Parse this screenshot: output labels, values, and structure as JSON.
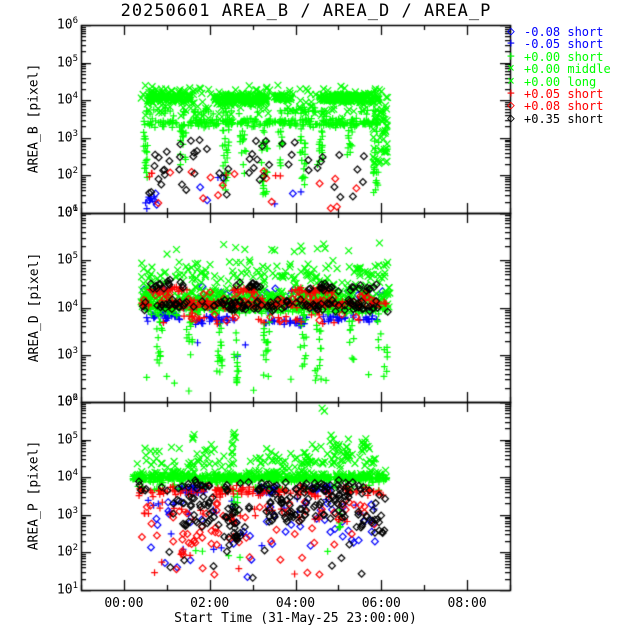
{
  "title": "20250601 AREA_B / AREA_D / AREA_P",
  "colors": {
    "background": "#ffffff",
    "axis": "#000000",
    "blue": "#0000ff",
    "green": "#00ff00",
    "red": "#ff0000",
    "black": "#000000"
  },
  "legend": {
    "position": "top-right-outside",
    "items": [
      {
        "label": "-0.08 short",
        "symbol": "diamond",
        "symbol_char": "◇",
        "color": "#0000ff"
      },
      {
        "label": "-0.05 short",
        "symbol": "plus",
        "symbol_char": "+",
        "color": "#0000ff"
      },
      {
        "label": "+0.00 short",
        "symbol": "plus",
        "symbol_char": "+",
        "color": "#00ff00"
      },
      {
        "label": "+0.00 middle",
        "symbol": "cross",
        "symbol_char": "×",
        "color": "#00ff00"
      },
      {
        "label": "+0.00 long",
        "symbol": "cross",
        "symbol_char": "×",
        "color": "#00ff00"
      },
      {
        "label": "+0.05 short",
        "symbol": "plus",
        "symbol_char": "+",
        "color": "#ff0000"
      },
      {
        "label": "+0.08 short",
        "symbol": "diamond",
        "symbol_char": "◇",
        "color": "#ff0000"
      },
      {
        "label": "+0.35 short",
        "symbol": "diamond",
        "symbol_char": "◇",
        "color": "#000000"
      }
    ]
  },
  "x_axis": {
    "label": "Start Time (31-May-25 23:00:00)",
    "tick_labels": [
      "00:00",
      "02:00",
      "04:00",
      "06:00",
      "08:00"
    ],
    "tick_hours": [
      0,
      2,
      4,
      6,
      8
    ],
    "range_hours": [
      -1,
      9
    ],
    "minor_tick_every_hours": 1
  },
  "panels": [
    {
      "name": "AREA_B",
      "ylabel": "AREA_B [pixel]",
      "y_exp_range": [
        1,
        6
      ],
      "ytick_exponents": [
        6,
        5,
        4,
        3,
        2,
        1
      ]
    },
    {
      "name": "AREA_D",
      "ylabel": "AREA_D [pixel]",
      "y_exp_range": [
        2,
        6
      ],
      "ytick_exponents": [
        6,
        5,
        4,
        3,
        2
      ]
    },
    {
      "name": "AREA_P",
      "ylabel": "AREA_P [pixel]",
      "y_exp_range": [
        1,
        6
      ],
      "ytick_exponents": [
        6,
        5,
        4,
        3,
        2,
        1
      ]
    }
  ],
  "chart_data": {
    "type": "scatter",
    "title": "20250601 AREA_B / AREA_D / AREA_P",
    "xlabel": "Start Time (31-May-25 23:00:00)",
    "x_unit": "hours after 00:00 on 1-Jun-25",
    "x_range_hours": [
      -1,
      9
    ],
    "y_scale": "log10",
    "grid": false,
    "legend_position": "top-right-outside",
    "cluster_format": "[x_start_hours, x_end_hours, log10y_min, log10y_max, n_points]",
    "series": [
      {
        "name": "-0.08 short",
        "color": "#0000ff",
        "symbol": "diamond",
        "clusters": {
          "AREA_B": [
            [
              0.5,
              0.8,
              1.1,
              1.65,
              4
            ],
            [
              1.5,
              4.3,
              1.3,
              2.2,
              3
            ]
          ],
          "AREA_D": [
            [
              0.45,
              6.1,
              4.1,
              4.45,
              40
            ],
            [
              0.5,
              2.0,
              3.92,
              4.1,
              10
            ]
          ],
          "AREA_P": [
            [
              0.4,
              6.0,
              2.1,
              3.35,
              42
            ],
            [
              0.6,
              3.2,
              1.3,
              2.05,
              5
            ]
          ]
        }
      },
      {
        "name": "-0.05 short",
        "color": "#0000ff",
        "symbol": "plus",
        "clusters": {
          "AREA_B": [
            [
              0.5,
              0.8,
              1.0,
              1.6,
              7
            ],
            [
              2.0,
              4.7,
              1.2,
              2.05,
              5
            ]
          ],
          "AREA_D": [
            [
              0.5,
              1.3,
              3.68,
              3.9,
              30
            ],
            [
              1.6,
              2.6,
              3.62,
              3.85,
              30
            ],
            [
              3.3,
              4.3,
              3.58,
              3.8,
              32
            ],
            [
              4.6,
              5.95,
              3.65,
              3.85,
              30
            ],
            [
              0.45,
              6.0,
              3.9,
              4.1,
              25
            ],
            [
              1.1,
              3.4,
              2.9,
              3.35,
              3
            ]
          ],
          "AREA_P": [
            [
              1.3,
              1.9,
              3.55,
              3.8,
              40
            ],
            [
              3.05,
              3.65,
              3.5,
              3.8,
              35
            ],
            [
              4.35,
              4.85,
              3.55,
              3.8,
              30
            ],
            [
              0.4,
              6.0,
              2.9,
              3.5,
              20
            ],
            [
              0.5,
              3.5,
              1.9,
              2.6,
              6
            ]
          ]
        }
      },
      {
        "name": "+0.00 short",
        "color": "#00ff00",
        "symbol": "plus",
        "clusters": {
          "AREA_B": [
            [
              0.45,
              5.95,
              3.25,
              3.55,
              260
            ],
            [
              0.5,
              5.9,
              3.55,
              3.85,
              60
            ],
            [
              0.45,
              0.55,
              1.9,
              3.25,
              18
            ],
            [
              1.3,
              1.45,
              2.2,
              3.25,
              15
            ],
            [
              2.3,
              2.45,
              1.6,
              3.25,
              22
            ],
            [
              2.7,
              2.85,
              2.0,
              3.25,
              15
            ],
            [
              3.2,
              3.35,
              1.5,
              3.25,
              25
            ],
            [
              3.55,
              3.7,
              2.2,
              3.25,
              12
            ],
            [
              4.1,
              4.25,
              1.7,
              3.25,
              20
            ],
            [
              4.5,
              4.65,
              2.0,
              3.25,
              15
            ],
            [
              5.2,
              5.35,
              2.4,
              3.25,
              10
            ],
            [
              5.8,
              5.95,
              1.5,
              3.2,
              18
            ]
          ],
          "AREA_D": [
            [
              0.4,
              6.2,
              3.8,
              4.15,
              200
            ],
            [
              0.75,
              0.9,
              2.75,
              3.75,
              14
            ],
            [
              1.45,
              1.6,
              2.9,
              3.75,
              12
            ],
            [
              2.15,
              2.3,
              2.6,
              3.75,
              16
            ],
            [
              2.55,
              2.7,
              2.4,
              3.75,
              14
            ],
            [
              3.25,
              3.4,
              2.5,
              3.75,
              18
            ],
            [
              4.1,
              4.25,
              2.7,
              3.75,
              12
            ],
            [
              4.45,
              4.6,
              2.3,
              3.75,
              14
            ],
            [
              5.25,
              5.4,
              2.8,
              3.75,
              10
            ],
            [
              5.9,
              6.15,
              2.5,
              3.75,
              12
            ],
            [
              0.5,
              6.0,
              2.15,
              2.7,
              8
            ]
          ],
          "AREA_P": [
            [
              0.2,
              6.15,
              3.85,
              4.1,
              420
            ],
            [
              0.3,
              6.0,
              3.6,
              3.85,
              40
            ],
            [
              2.55,
              2.65,
              3.0,
              3.8,
              8
            ],
            [
              5.0,
              5.1,
              2.6,
              3.8,
              6
            ],
            [
              1.0,
              5.5,
              1.6,
              2.4,
              5
            ]
          ]
        }
      },
      {
        "name": "+0.00 middle",
        "color": "#00ff00",
        "symbol": "cross",
        "clusters": {
          "AREA_B": [
            [
              0.55,
              1.55,
              3.9,
              4.25,
              120
            ],
            [
              2.1,
              3.35,
              3.85,
              4.2,
              160
            ],
            [
              3.5,
              3.9,
              3.95,
              4.2,
              40
            ],
            [
              4.55,
              5.95,
              3.9,
              4.2,
              150
            ],
            [
              0.4,
              6.1,
              3.5,
              4.35,
              80
            ],
            [
              5.8,
              6.15,
              2.3,
              4.1,
              50
            ]
          ],
          "AREA_D": [
            [
              0.4,
              6.2,
              3.9,
              4.35,
              330
            ],
            [
              0.4,
              6.2,
              4.35,
              5.05,
              130
            ],
            [
              0.5,
              6.0,
              5.05,
              5.45,
              15
            ]
          ],
          "AREA_P": [
            [
              0.2,
              6.15,
              3.9,
              4.2,
              180
            ],
            [
              0.3,
              6.1,
              4.2,
              4.6,
              60
            ]
          ]
        }
      },
      {
        "name": "+0.00 long",
        "color": "#00ff00",
        "symbol": "cross",
        "clusters": {
          "AREA_B": [
            [
              0.4,
              6.1,
              3.6,
              4.4,
              70
            ]
          ],
          "AREA_D": [
            [
              0.4,
              6.2,
              4.0,
              4.6,
              120
            ]
          ],
          "AREA_P": [
            [
              0.3,
              6.1,
              4.2,
              4.9,
              60
            ],
            [
              2.5,
              2.7,
              4.6,
              5.35,
              8
            ],
            [
              4.8,
              5.25,
              4.4,
              5.15,
              18
            ],
            [
              5.5,
              5.75,
              4.6,
              5.1,
              10
            ],
            [
              4.55,
              4.7,
              5.6,
              5.95,
              2
            ],
            [
              1.55,
              1.7,
              4.9,
              5.2,
              3
            ]
          ]
        }
      },
      {
        "name": "+0.05 short",
        "color": "#ff0000",
        "symbol": "plus",
        "clusters": {
          "AREA_B": [
            [
              0.5,
              0.7,
              1.9,
              2.15,
              3
            ],
            [
              2.1,
              4.4,
              1.8,
              2.2,
              3
            ]
          ],
          "AREA_D": [
            [
              0.4,
              6.2,
              3.95,
              4.2,
              140
            ],
            [
              0.6,
              1.5,
              4.28,
              4.45,
              25
            ],
            [
              2.5,
              3.1,
              4.28,
              4.45,
              20
            ],
            [
              3.9,
              5.0,
              4.28,
              4.45,
              30
            ],
            [
              0.4,
              6.0,
              3.6,
              3.9,
              25
            ]
          ],
          "AREA_P": [
            [
              0.35,
              6.1,
              3.45,
              3.8,
              120
            ],
            [
              0.4,
              5.8,
              2.7,
              3.4,
              30
            ],
            [
              0.4,
              4.2,
              1.4,
              2.2,
              6
            ]
          ]
        }
      },
      {
        "name": "+0.08 short",
        "color": "#ff0000",
        "symbol": "diamond",
        "clusters": {
          "AREA_B": [
            [
              0.5,
              5.9,
              1.0,
              2.3,
              16
            ]
          ],
          "AREA_D": [
            [
              0.4,
              6.1,
              4.0,
              4.35,
              45
            ],
            [
              0.6,
              5.5,
              3.7,
              3.95,
              12
            ]
          ],
          "AREA_P": [
            [
              0.4,
              6.0,
              2.2,
              3.4,
              55
            ],
            [
              1.3,
              2.3,
              1.9,
              2.7,
              15
            ],
            [
              0.5,
              5.8,
              1.2,
              1.9,
              8
            ]
          ]
        }
      },
      {
        "name": "+0.35 short",
        "color": "#000000",
        "symbol": "diamond",
        "clusters": {
          "AREA_B": [
            [
              0.45,
              5.6,
              1.35,
              2.95,
              55
            ]
          ],
          "AREA_D": [
            [
              0.4,
              6.2,
              3.9,
              4.2,
              120
            ],
            [
              0.6,
              1.4,
              4.35,
              4.6,
              15
            ],
            [
              2.6,
              3.2,
              4.35,
              4.55,
              12
            ],
            [
              4.3,
              5.9,
              4.3,
              4.55,
              25
            ]
          ],
          "AREA_P": [
            [
              0.35,
              6.1,
              3.55,
              3.95,
              60
            ],
            [
              1.1,
              2.1,
              2.6,
              3.5,
              35
            ],
            [
              2.2,
              3.0,
              2.3,
              3.3,
              30
            ],
            [
              3.1,
              4.3,
              2.8,
              3.7,
              45
            ],
            [
              4.4,
              5.3,
              2.9,
              3.8,
              40
            ],
            [
              5.4,
              6.1,
              2.5,
              3.6,
              25
            ],
            [
              0.5,
              5.6,
              1.3,
              2.3,
              12
            ]
          ]
        }
      }
    ]
  }
}
